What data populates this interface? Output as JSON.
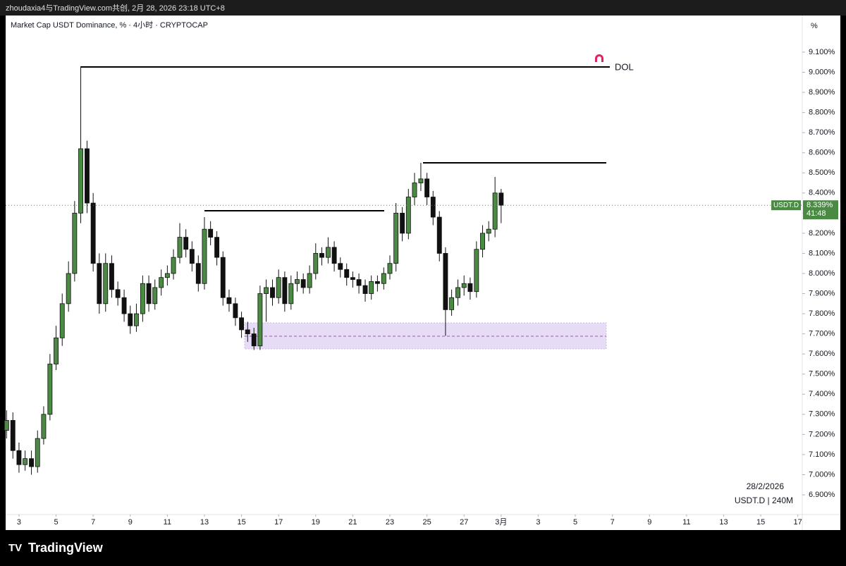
{
  "header": {
    "text": "zhoudaxia4与TradingView.com共创, 2月 28, 2026 23:18 UTC+8"
  },
  "chart_data": {
    "type": "candlestick",
    "title": "Market Cap USDT Dominance, % · 4小时 · CRYPTOCAP",
    "unit": "%",
    "x": [
      2.33,
      2.67,
      3.0,
      3.33,
      3.67,
      4.0,
      4.33,
      4.67,
      5.0,
      5.33,
      5.67,
      6.0,
      6.33,
      6.67,
      7.0,
      7.33,
      7.67,
      8.0,
      8.33,
      8.67,
      9.0,
      9.33,
      9.67,
      10.0,
      10.33,
      10.67,
      11.0,
      11.33,
      11.67,
      12.0,
      12.33,
      12.67,
      13.0,
      13.33,
      13.67,
      14.0,
      14.33,
      14.67,
      15.0,
      15.33,
      15.67,
      16.0,
      16.33,
      16.67,
      17.0,
      17.33,
      17.67,
      18.0,
      18.33,
      18.67,
      19.0,
      19.33,
      19.67,
      20.0,
      20.33,
      20.67,
      21.0,
      21.33,
      21.67,
      22.0,
      22.33,
      22.67,
      23.0,
      23.33,
      23.67,
      24.0,
      24.33,
      24.67,
      25.0,
      25.33,
      25.67,
      26.0,
      26.33,
      26.67,
      27.0,
      27.33,
      27.67,
      28.0,
      28.33,
      28.67,
      29.0
    ],
    "open": [
      7.22,
      7.27,
      7.12,
      7.05,
      7.08,
      7.04,
      7.18,
      7.3,
      7.55,
      7.68,
      7.85,
      8.0,
      8.3,
      8.62,
      8.35,
      8.05,
      7.85,
      8.05,
      7.92,
      7.88,
      7.8,
      7.74,
      7.8,
      7.95,
      7.85,
      7.93,
      7.98,
      8.0,
      8.08,
      8.18,
      8.12,
      8.05,
      7.95,
      8.22,
      8.18,
      8.08,
      7.88,
      7.85,
      7.78,
      7.72,
      7.7,
      7.64,
      7.9,
      7.93,
      7.88,
      7.98,
      7.85,
      7.95,
      7.97,
      7.93,
      8.0,
      8.1,
      8.08,
      8.13,
      8.05,
      8.02,
      7.98,
      7.97,
      7.94,
      7.9,
      7.96,
      7.95,
      8.0,
      8.05,
      8.3,
      8.2,
      8.38,
      8.45,
      8.47,
      8.38,
      8.28,
      8.1,
      7.82,
      7.88,
      7.93,
      7.95,
      7.91,
      8.12,
      8.2,
      8.22,
      8.4
    ],
    "high": [
      7.32,
      7.31,
      7.16,
      7.12,
      7.12,
      7.22,
      7.34,
      7.6,
      7.74,
      7.9,
      8.06,
      8.36,
      9.03,
      8.66,
      8.4,
      8.1,
      8.1,
      8.09,
      7.96,
      7.92,
      7.84,
      7.85,
      7.99,
      7.99,
      7.97,
      8.02,
      8.04,
      8.12,
      8.25,
      8.22,
      8.16,
      8.09,
      8.28,
      8.26,
      8.21,
      8.11,
      7.92,
      7.88,
      7.81,
      7.76,
      7.73,
      7.94,
      7.97,
      7.97,
      8.02,
      8.01,
      7.99,
      8.01,
      8.0,
      8.04,
      8.15,
      8.13,
      8.18,
      8.16,
      8.08,
      8.05,
      8.01,
      8.0,
      7.97,
      7.99,
      7.99,
      8.03,
      8.09,
      8.35,
      8.33,
      8.42,
      8.5,
      8.55,
      8.5,
      8.41,
      8.31,
      8.13,
      7.92,
      7.97,
      7.99,
      7.98,
      8.16,
      8.24,
      8.26,
      8.48,
      8.42
    ],
    "low": [
      7.18,
      7.08,
      7.01,
      7.02,
      7.0,
      7.01,
      7.15,
      7.27,
      7.52,
      7.64,
      7.81,
      7.96,
      8.25,
      8.3,
      8.01,
      7.8,
      7.81,
      7.88,
      7.84,
      7.76,
      7.7,
      7.71,
      7.76,
      7.81,
      7.82,
      7.89,
      7.94,
      7.97,
      8.05,
      8.08,
      8.01,
      7.91,
      7.92,
      8.14,
      8.04,
      7.84,
      7.81,
      7.74,
      7.68,
      7.66,
      7.62,
      7.62,
      7.76,
      7.84,
      7.85,
      7.81,
      7.82,
      7.91,
      7.9,
      7.9,
      7.97,
      8.04,
      8.05,
      8.01,
      7.98,
      7.94,
      7.93,
      7.9,
      7.86,
      7.87,
      7.91,
      7.92,
      7.97,
      8.01,
      8.16,
      8.17,
      8.34,
      8.41,
      8.34,
      8.24,
      8.06,
      7.69,
      7.79,
      7.84,
      7.89,
      7.87,
      7.88,
      8.08,
      8.16,
      8.18,
      8.25
    ],
    "close": [
      7.27,
      7.12,
      7.05,
      7.08,
      7.04,
      7.18,
      7.3,
      7.55,
      7.68,
      7.85,
      8.0,
      8.3,
      8.62,
      8.35,
      8.05,
      7.85,
      8.05,
      7.92,
      7.88,
      7.8,
      7.74,
      7.8,
      7.95,
      7.85,
      7.93,
      7.98,
      8.0,
      8.08,
      8.18,
      8.12,
      8.05,
      7.95,
      8.22,
      8.18,
      8.08,
      7.88,
      7.85,
      7.78,
      7.72,
      7.7,
      7.64,
      7.9,
      7.93,
      7.88,
      7.98,
      7.85,
      7.95,
      7.97,
      7.93,
      8.0,
      8.1,
      8.08,
      8.13,
      8.05,
      8.02,
      7.98,
      7.97,
      7.94,
      7.9,
      7.96,
      7.95,
      8.0,
      8.05,
      8.3,
      8.2,
      8.38,
      8.45,
      8.47,
      8.38,
      8.28,
      8.1,
      7.82,
      7.88,
      7.93,
      7.95,
      7.91,
      8.12,
      8.2,
      8.22,
      8.4,
      8.339
    ],
    "up_color": "#4a8a43",
    "down_color": "#111111",
    "xlim": [
      2.28,
      45.24
    ],
    "xticks": [
      3,
      5,
      7,
      9,
      11,
      13,
      15,
      17,
      19,
      21,
      23,
      25,
      27,
      {
        "value": 29,
        "label": "3月"
      },
      {
        "value": 31,
        "label": "3"
      },
      {
        "value": 33,
        "label": "5"
      },
      {
        "value": 35,
        "label": "7"
      },
      {
        "value": 37,
        "label": "9"
      },
      {
        "value": 39,
        "label": "11"
      },
      {
        "value": 41,
        "label": "13"
      },
      {
        "value": 43,
        "label": "15"
      },
      {
        "value": 45,
        "label": "17"
      }
    ],
    "ylim": [
      6.802,
      9.282
    ],
    "yticks": [
      {
        "value": 6.9,
        "label": "6.900%"
      },
      {
        "value": 7.0,
        "label": "7.000%"
      },
      {
        "value": 7.1,
        "label": "7.100%"
      },
      {
        "value": 7.2,
        "label": "7.200%"
      },
      {
        "value": 7.3,
        "label": "7.300%"
      },
      {
        "value": 7.4,
        "label": "7.400%"
      },
      {
        "value": 7.5,
        "label": "7.500%"
      },
      {
        "value": 7.6,
        "label": "7.600%"
      },
      {
        "value": 7.7,
        "label": "7.700%"
      },
      {
        "value": 7.8,
        "label": "7.800%"
      },
      {
        "value": 7.9,
        "label": "7.900%"
      },
      {
        "value": 8.0,
        "label": "8.000%"
      },
      {
        "value": 8.1,
        "label": "8.100%"
      },
      {
        "value": 8.2,
        "label": "8.200%"
      },
      {
        "value": 8.3,
        "label": "8.300%"
      },
      {
        "value": 8.4,
        "label": "8.400%"
      },
      {
        "value": 8.5,
        "label": "8.500%"
      },
      {
        "value": 8.6,
        "label": "8.600%"
      },
      {
        "value": 8.7,
        "label": "8.700%"
      },
      {
        "value": 8.8,
        "label": "8.800%"
      },
      {
        "value": 8.9,
        "label": "8.900%"
      },
      {
        "value": 9.0,
        "label": "9.000%"
      },
      {
        "value": 9.1,
        "label": "9.100%"
      }
    ],
    "annotation": "DOL",
    "symbol": "USDT.D",
    "last_price": 8.339,
    "last_price_label": "8.339%",
    "countdown": "41:48",
    "date_label": "28/2/2026",
    "interval_label": "USDT.D | 240M"
  },
  "footer": {
    "brand": "TradingView"
  }
}
